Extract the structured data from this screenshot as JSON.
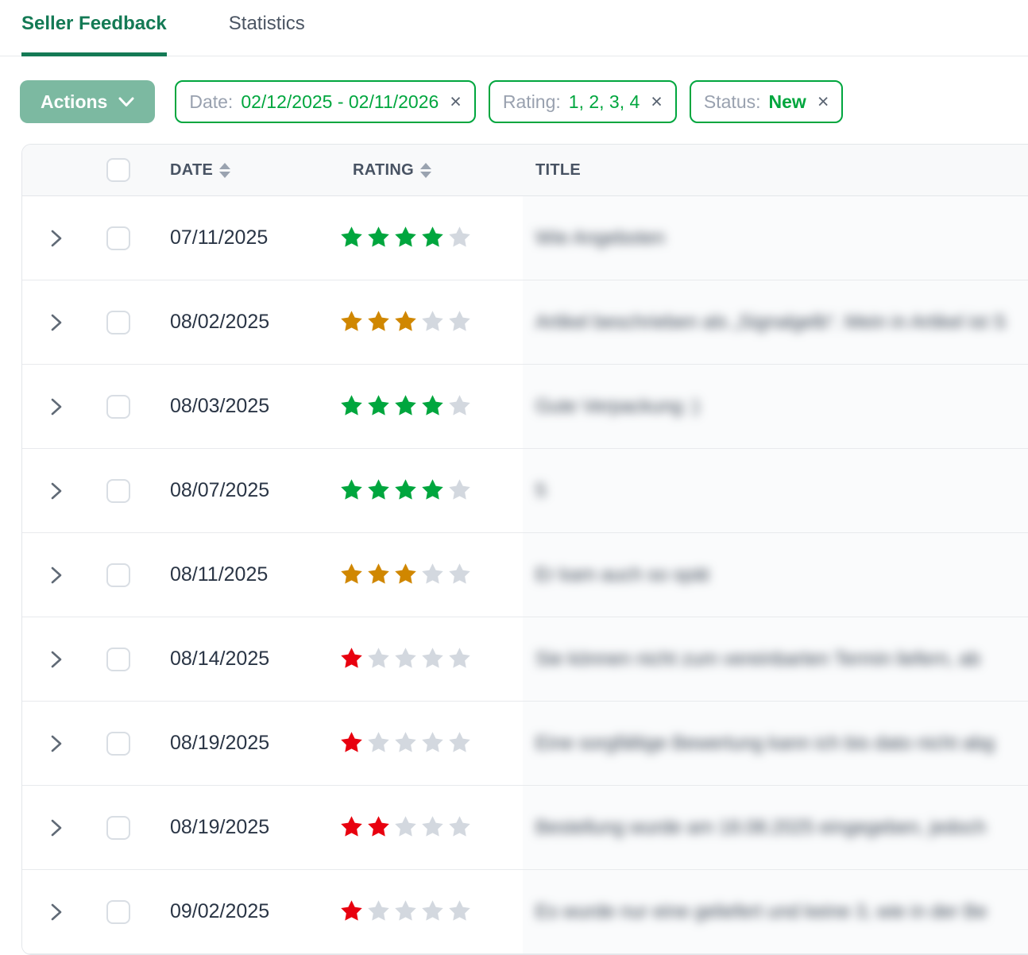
{
  "tabs": [
    {
      "label": "Seller Feedback",
      "active": true
    },
    {
      "label": "Statistics",
      "active": false
    }
  ],
  "toolbar": {
    "actions_label": "Actions"
  },
  "filters": [
    {
      "label": "Date:",
      "value": "02/12/2025 - 02/11/2026",
      "close": "×"
    },
    {
      "label": "Rating:",
      "value": "1, 2, 3, 4",
      "close": "×"
    },
    {
      "label": "Status:",
      "value": "New",
      "close": "×"
    }
  ],
  "table": {
    "columns": {
      "date": "Date",
      "rating": "Rating",
      "title": "Title"
    },
    "titles_blurred": true,
    "rows": [
      {
        "date": "07/11/2025",
        "rating": 4,
        "rating_color": "green",
        "title": "Wie Angeboten"
      },
      {
        "date": "08/02/2025",
        "rating": 3,
        "rating_color": "amber",
        "title": "Artikel beschrieben als „Signalgelb“. Mein in Artikel ist S"
      },
      {
        "date": "08/03/2025",
        "rating": 4,
        "rating_color": "green",
        "title": "Gute Verpackung :)"
      },
      {
        "date": "08/07/2025",
        "rating": 4,
        "rating_color": "green",
        "title": "5"
      },
      {
        "date": "08/11/2025",
        "rating": 3,
        "rating_color": "amber",
        "title": "Er kam auch so spät"
      },
      {
        "date": "08/14/2025",
        "rating": 1,
        "rating_color": "red",
        "title": "Sie können nicht zum vereinbarten Termin liefern, ab"
      },
      {
        "date": "08/19/2025",
        "rating": 1,
        "rating_color": "red",
        "title": "Eine sorgfältige Bewertung kann ich bis dato nicht abg"
      },
      {
        "date": "08/19/2025",
        "rating": 2,
        "rating_color": "red",
        "title": "Bestellung wurde am 18.08.2025 eingegeben, jedoch"
      },
      {
        "date": "09/02/2025",
        "rating": 1,
        "rating_color": "red",
        "title": "Es wurde nur eine geliefert und keine 3, wie in der Be"
      }
    ]
  },
  "colors": {
    "tab_active_green": "#147a55",
    "actions_button_bg": "#7cb9a1",
    "chip_green": "#00a63e",
    "star_green": "#00a63e",
    "star_amber": "#d08700",
    "star_red": "#e8000f",
    "star_empty": "#d3d8df"
  }
}
